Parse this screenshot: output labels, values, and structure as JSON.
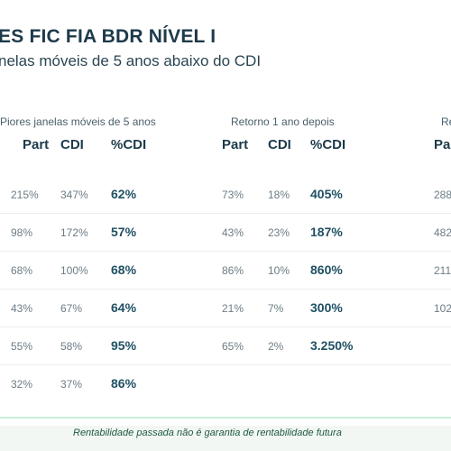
{
  "title": "ES FIC FIA BDR NÍVEL I",
  "subtitle": "nelas móveis de 5 anos abaixo do CDI",
  "groups": {
    "worst": "Piores janelas móveis de 5 anos",
    "after": "Retorno 1 ano depois",
    "third": "Re"
  },
  "headers": {
    "worst": {
      "part": "Part",
      "cdi": "CDI",
      "pct": "%CDI"
    },
    "after": {
      "part": "Part",
      "cdi": "CDI",
      "pct": "%CDI"
    },
    "third": {
      "part": "Pa"
    }
  },
  "rows": [
    {
      "w_part": "215%",
      "w_cdi": "347%",
      "w_pct": "62%",
      "a_part": "73%",
      "a_cdi": "18%",
      "a_pct": "405%",
      "t_part": "288"
    },
    {
      "w_part": "98%",
      "w_cdi": "172%",
      "w_pct": "57%",
      "a_part": "43%",
      "a_cdi": "23%",
      "a_pct": "187%",
      "t_part": "482"
    },
    {
      "w_part": "68%",
      "w_cdi": "100%",
      "w_pct": "68%",
      "a_part": "86%",
      "a_cdi": "10%",
      "a_pct": "860%",
      "t_part": "211%"
    },
    {
      "w_part": "43%",
      "w_cdi": "67%",
      "w_pct": "64%",
      "a_part": "21%",
      "a_cdi": "7%",
      "a_pct": "300%",
      "t_part": "102"
    },
    {
      "w_part": "55%",
      "w_cdi": "58%",
      "w_pct": "95%",
      "a_part": "65%",
      "a_cdi": "2%",
      "a_pct": "3.250%",
      "t_part": ""
    },
    {
      "w_part": "32%",
      "w_cdi": "37%",
      "w_pct": "86%",
      "a_part": "",
      "a_cdi": "",
      "a_pct": "",
      "t_part": ""
    }
  ],
  "footer": "Rentabilidade passada não é garantia de rentabilidade futura"
}
